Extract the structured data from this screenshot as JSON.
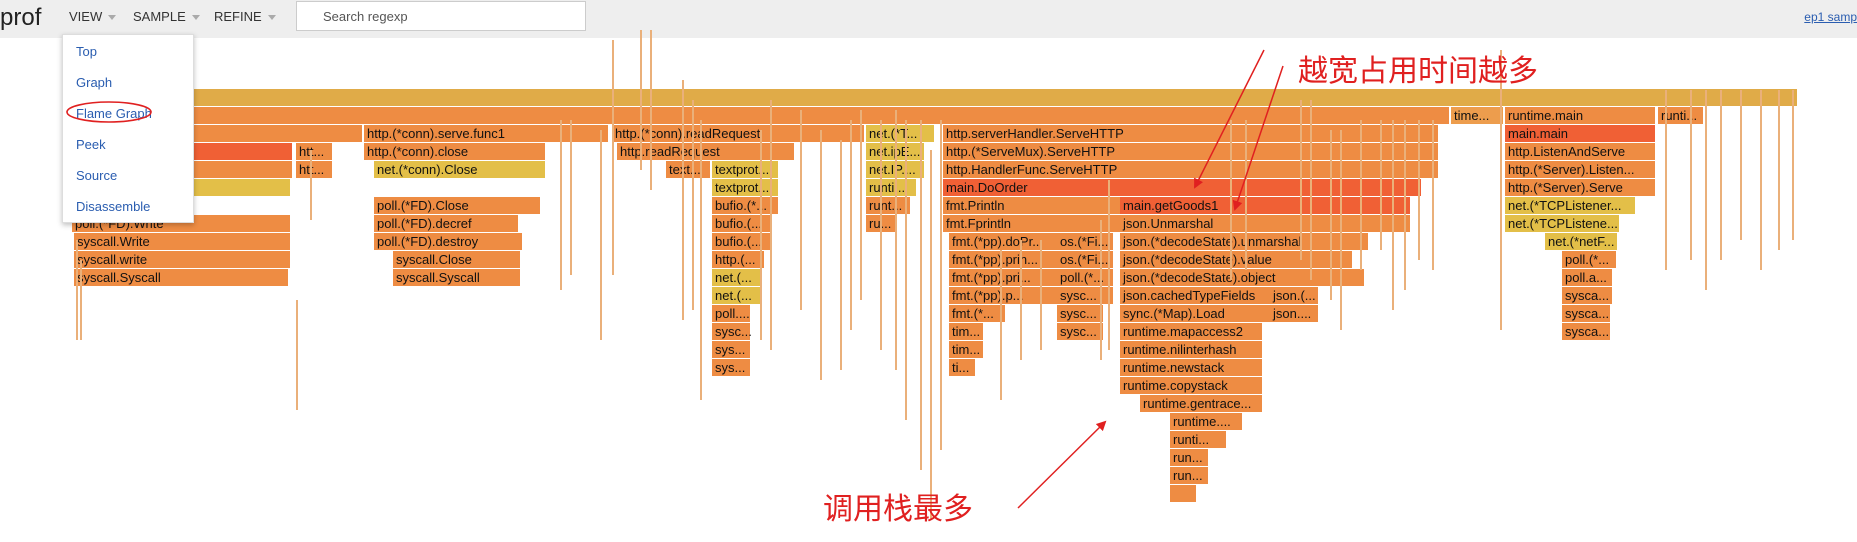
{
  "header": {
    "logo": "prof",
    "menus": [
      {
        "label": "VIEW"
      },
      {
        "label": "SAMPLE"
      },
      {
        "label": "REFINE"
      }
    ],
    "search_placeholder": "Search regexp",
    "right_link": "ep1 samp"
  },
  "view_menu": {
    "items": [
      "Top",
      "Graph",
      "Flame Graph",
      "Peek",
      "Source",
      "Disassemble"
    ],
    "highlighted": "Flame Graph"
  },
  "annotations": {
    "top": "越宽占用时间越多",
    "bottom": "调用栈最多",
    "color": "#e02020"
  },
  "flame_graph": {
    "colors": {
      "deep_red": "#f06035",
      "orange": "#ee8c43",
      "light_orange": "#ed9d4d",
      "yellow": "#e3bf48",
      "root": "#e0ab48"
    },
    "frames": [
      {
        "label": "",
        "level": 0,
        "color": "root"
      },
      {
        "label": "",
        "level": 1,
        "color": "orange"
      },
      {
        "label": "time...",
        "level": 1,
        "color": "light_orange"
      },
      {
        "label": "runtime.main",
        "level": 1,
        "color": "orange"
      },
      {
        "label": "runti...",
        "level": 1,
        "color": "orange"
      },
      {
        "label": "ishRequest",
        "level": 2,
        "color": "orange"
      },
      {
        "label": "http.(*conn).serve.func1",
        "level": 2,
        "color": "orange"
      },
      {
        "label": "http.(*conn).readRequest",
        "level": 2,
        "color": "orange"
      },
      {
        "label": "net.(*T...",
        "level": 2,
        "color": "yellow"
      },
      {
        "label": "http.serverHandler.ServeHTTP",
        "level": 2,
        "color": "orange"
      },
      {
        "label": "main.main",
        "level": 2,
        "color": "deep_red"
      },
      {
        "label": "h",
        "level": 3,
        "color": "deep_red"
      },
      {
        "label": "htt...",
        "level": 3,
        "color": "orange"
      },
      {
        "label": "http.(*conn).close",
        "level": 3,
        "color": "orange"
      },
      {
        "label": "http.readRequest",
        "level": 3,
        "color": "orange"
      },
      {
        "label": "net.ipE...",
        "level": 3,
        "color": "yellow"
      },
      {
        "label": "http.(*ServeMux).ServeHTTP",
        "level": 3,
        "color": "orange"
      },
      {
        "label": "http.ListenAndServe",
        "level": 3,
        "color": "orange"
      },
      {
        "label": "rWriter.Write",
        "level": 4,
        "color": "orange"
      },
      {
        "label": "htt...",
        "level": 4,
        "color": "orange"
      },
      {
        "label": "net.(*conn).Close",
        "level": 4,
        "color": "yellow"
      },
      {
        "label": "text...",
        "level": 4,
        "color": "orange"
      },
      {
        "label": "textprot...",
        "level": 4,
        "color": "yellow"
      },
      {
        "label": "net.IP....",
        "level": 4,
        "color": "yellow"
      },
      {
        "label": "http.HandlerFunc.ServeHTTP",
        "level": 4,
        "color": "orange"
      },
      {
        "label": "http.(*Server).Listen...",
        "level": 4,
        "color": "orange"
      },
      {
        "label": "net.(*netFD).Close",
        "level": 5,
        "color": "yellow"
      },
      {
        "label": "textprot...",
        "level": 5,
        "color": "yellow"
      },
      {
        "label": "runti...",
        "level": 5,
        "color": "yellow"
      },
      {
        "label": "main.DoOrder",
        "level": 5,
        "color": "deep_red"
      },
      {
        "label": "http.(*Server).Serve",
        "level": 5,
        "color": "orange"
      },
      {
        "label": "poll.(*FD).Close",
        "level": 6,
        "color": "orange"
      },
      {
        "label": "bufio.(*...",
        "level": 6,
        "color": "orange"
      },
      {
        "label": "runt...",
        "level": 6,
        "color": "orange"
      },
      {
        "label": "fmt.Println",
        "level": 6,
        "color": "orange"
      },
      {
        "label": "main.getGoods1",
        "level": 6,
        "color": "deep_red"
      },
      {
        "label": "net.(*TCPListener...",
        "level": 6,
        "color": "yellow"
      },
      {
        "label": "poll.(*FD).Write",
        "level": 7,
        "color": "orange"
      },
      {
        "label": "poll.(*FD).decref",
        "level": 7,
        "color": "orange"
      },
      {
        "label": "bufio.(...",
        "level": 7,
        "color": "orange"
      },
      {
        "label": "ru...",
        "level": 7,
        "color": "orange"
      },
      {
        "label": "fmt.Fprintln",
        "level": 7,
        "color": "orange"
      },
      {
        "label": "json.Unmarshal",
        "level": 7,
        "color": "orange"
      },
      {
        "label": "net.(*TCPListene...",
        "level": 7,
        "color": "yellow"
      },
      {
        "label": "syscall.Write",
        "level": 8,
        "color": "orange"
      },
      {
        "label": "poll.(*FD).destroy",
        "level": 8,
        "color": "orange"
      },
      {
        "label": "bufio.(...",
        "level": 8,
        "color": "orange"
      },
      {
        "label": "fmt.(*pp).doPr...",
        "level": 8,
        "color": "orange"
      },
      {
        "label": "os.(*Fi...",
        "level": 8,
        "color": "orange"
      },
      {
        "label": "json.(*decodeState).unmarshal",
        "level": 8,
        "color": "orange"
      },
      {
        "label": "net.(*netF...",
        "level": 8,
        "color": "yellow"
      },
      {
        "label": "syscall.write",
        "level": 9,
        "color": "orange"
      },
      {
        "label": "syscall.Close",
        "level": 9,
        "color": "orange"
      },
      {
        "label": "http.(...",
        "level": 9,
        "color": "orange"
      },
      {
        "label": "fmt.(*pp).prin...",
        "level": 9,
        "color": "orange"
      },
      {
        "label": "os.(*Fi...",
        "level": 9,
        "color": "orange"
      },
      {
        "label": "json.(*decodeState).value",
        "level": 9,
        "color": "orange"
      },
      {
        "label": "poll.(*...",
        "level": 9,
        "color": "orange"
      },
      {
        "label": "syscall.Syscall",
        "level": 10,
        "color": "orange"
      },
      {
        "label": "syscall.Syscall",
        "level": 10,
        "color": "orange"
      },
      {
        "label": "net.(...",
        "level": 10,
        "color": "yellow"
      },
      {
        "label": "fmt.(*pp).pri...",
        "level": 10,
        "color": "orange"
      },
      {
        "label": "poll.(*...",
        "level": 10,
        "color": "orange"
      },
      {
        "label": "json.(*decodeState).object",
        "level": 10,
        "color": "orange"
      },
      {
        "label": "poll.a...",
        "level": 10,
        "color": "orange"
      },
      {
        "label": "net.(...",
        "level": 11,
        "color": "yellow"
      },
      {
        "label": "fmt.(*pp).p...",
        "level": 11,
        "color": "orange"
      },
      {
        "label": "sysc...",
        "level": 11,
        "color": "orange"
      },
      {
        "label": "json.cachedTypeFields",
        "level": 11,
        "color": "orange"
      },
      {
        "label": "json.(...",
        "level": 11,
        "color": "orange"
      },
      {
        "label": "sysca...",
        "level": 11,
        "color": "orange"
      },
      {
        "label": "poll....",
        "level": 12,
        "color": "orange"
      },
      {
        "label": "fmt.(*...",
        "level": 12,
        "color": "orange"
      },
      {
        "label": "sysc...",
        "level": 12,
        "color": "orange"
      },
      {
        "label": "sync.(*Map).Load",
        "level": 12,
        "color": "orange"
      },
      {
        "label": "json....",
        "level": 12,
        "color": "orange"
      },
      {
        "label": "sysca...",
        "level": 12,
        "color": "orange"
      },
      {
        "label": "sysc...",
        "level": 13,
        "color": "orange"
      },
      {
        "label": "tim...",
        "level": 13,
        "color": "orange"
      },
      {
        "label": "sysc...",
        "level": 13,
        "color": "orange"
      },
      {
        "label": "runtime.mapaccess2",
        "level": 13,
        "color": "orange"
      },
      {
        "label": "sysca...",
        "level": 13,
        "color": "orange"
      },
      {
        "label": "sys...",
        "level": 14,
        "color": "orange"
      },
      {
        "label": "tim...",
        "level": 14,
        "color": "orange"
      },
      {
        "label": "runtime.nilinterhash",
        "level": 14,
        "color": "orange"
      },
      {
        "label": "sys...",
        "level": 15,
        "color": "orange"
      },
      {
        "label": "ti...",
        "level": 15,
        "color": "orange"
      },
      {
        "label": "runtime.newstack",
        "level": 15,
        "color": "orange"
      },
      {
        "label": "runtime.copystack",
        "level": 16,
        "color": "orange"
      },
      {
        "label": "runtime.gentrace...",
        "level": 17,
        "color": "orange"
      },
      {
        "label": "runtime....",
        "level": 18,
        "color": "orange"
      },
      {
        "label": "runti...",
        "level": 19,
        "color": "orange"
      },
      {
        "label": "run...",
        "level": 20,
        "color": "orange"
      },
      {
        "label": "run...",
        "level": 21,
        "color": "orange"
      },
      {
        "label": "",
        "level": 22,
        "color": "orange"
      }
    ]
  }
}
